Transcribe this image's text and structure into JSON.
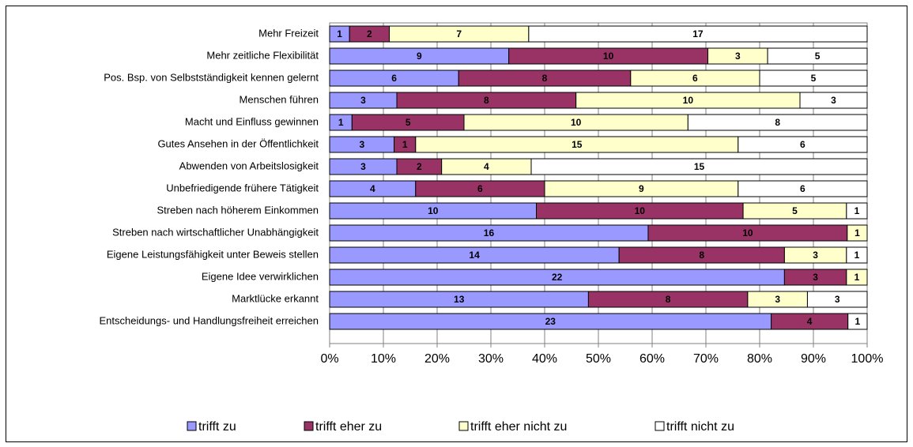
{
  "chart_data": {
    "type": "bar",
    "orientation": "horizontal",
    "stacked": "percent",
    "categories": [
      "Mehr Freizeit",
      "Mehr zeitliche Flexibilität",
      "Pos. Bsp. von Selbstständigkeit kennen gelernt",
      "Menschen führen",
      "Macht und Einfluss gewinnen",
      "Gutes Ansehen in der Öffentlichkeit",
      "Abwenden von Arbeitslosigkeit",
      "Unbefriedigende frühere Tätigkeit",
      "Streben nach höherem Einkommen",
      "Streben nach wirtschaftlicher Unabhängigkeit",
      "Eigene Leistungsfähigkeit unter Beweis stellen",
      "Eigene Idee verwirklichen",
      "Marktlücke erkannt",
      "Entscheidungs- und Handlungsfreiheit erreichen"
    ],
    "series": [
      {
        "name": "trifft zu",
        "color": "#9999ff",
        "values": [
          1,
          9,
          6,
          3,
          1,
          3,
          3,
          4,
          10,
          16,
          14,
          22,
          13,
          23
        ]
      },
      {
        "name": "trifft eher zu",
        "color": "#993366",
        "values": [
          2,
          10,
          8,
          8,
          5,
          1,
          2,
          6,
          10,
          10,
          8,
          3,
          8,
          4
        ]
      },
      {
        "name": "trifft eher nicht zu",
        "color": "#ffffcc",
        "values": [
          7,
          3,
          6,
          10,
          10,
          15,
          4,
          9,
          5,
          1,
          3,
          1,
          3,
          0
        ]
      },
      {
        "name": "trifft nicht zu",
        "color": "#ffffff",
        "values": [
          17,
          5,
          5,
          3,
          8,
          6,
          15,
          6,
          1,
          0,
          1,
          0,
          3,
          1
        ]
      }
    ],
    "xlim": [
      0,
      100
    ],
    "xticks": [
      {
        "value": 0,
        "label": "0%"
      },
      {
        "value": 10,
        "label": "10%"
      },
      {
        "value": 20,
        "label": "20%"
      },
      {
        "value": 30,
        "label": "30%"
      },
      {
        "value": 40,
        "label": "40%"
      },
      {
        "value": 50,
        "label": "50%"
      },
      {
        "value": 60,
        "label": "60%"
      },
      {
        "value": 70,
        "label": "70%"
      },
      {
        "value": 80,
        "label": "80%"
      },
      {
        "value": 90,
        "label": "90%"
      },
      {
        "value": 100,
        "label": "100%"
      }
    ],
    "grid": true,
    "legend": "bottom"
  }
}
